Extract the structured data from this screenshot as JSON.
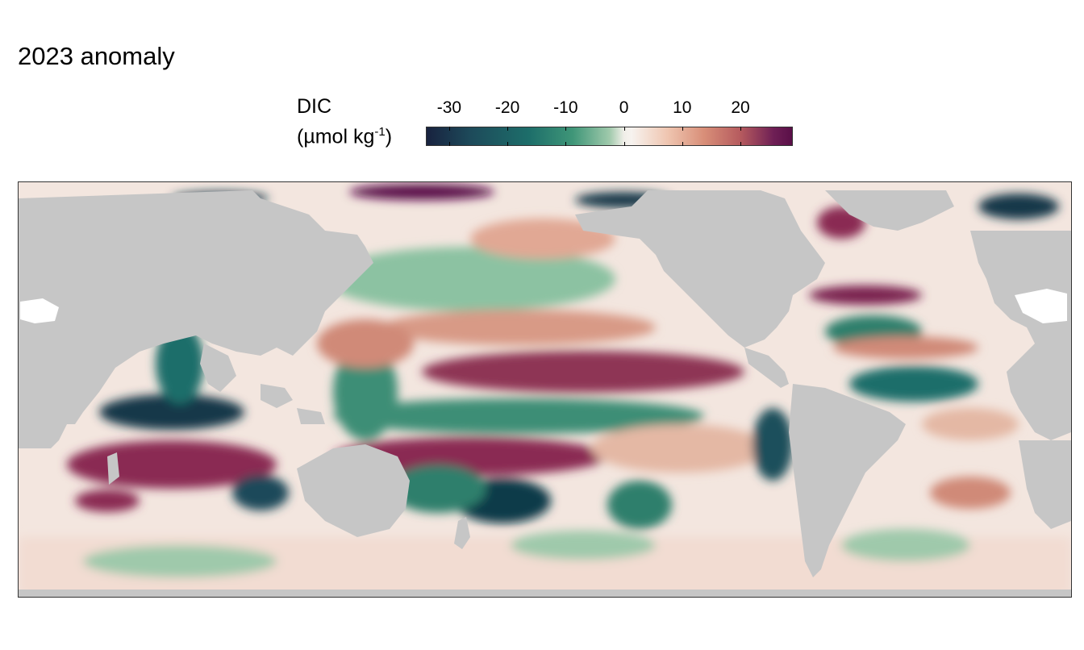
{
  "title": "2023 anomaly",
  "legend": {
    "variable": "DIC",
    "unit_prefix": "(µmol kg",
    "unit_exponent": "-1",
    "unit_suffix": ")",
    "colormap": [
      "#18223f",
      "#1d6e6a",
      "#9fc9ab",
      "#f7f3ef",
      "#d88e78",
      "#5a0f48"
    ],
    "ticks": [
      {
        "label": "-30",
        "value": -30
      },
      {
        "label": "-20",
        "value": -20
      },
      {
        "label": "-10",
        "value": -10
      },
      {
        "label": "0",
        "value": 0
      },
      {
        "label": "10",
        "value": 10
      },
      {
        "label": "20",
        "value": 20
      }
    ],
    "range": [
      -34,
      29
    ]
  },
  "map": {
    "land_color": "#c6c6c6",
    "projection": "equirectangular",
    "coverage": "global ocean"
  }
}
